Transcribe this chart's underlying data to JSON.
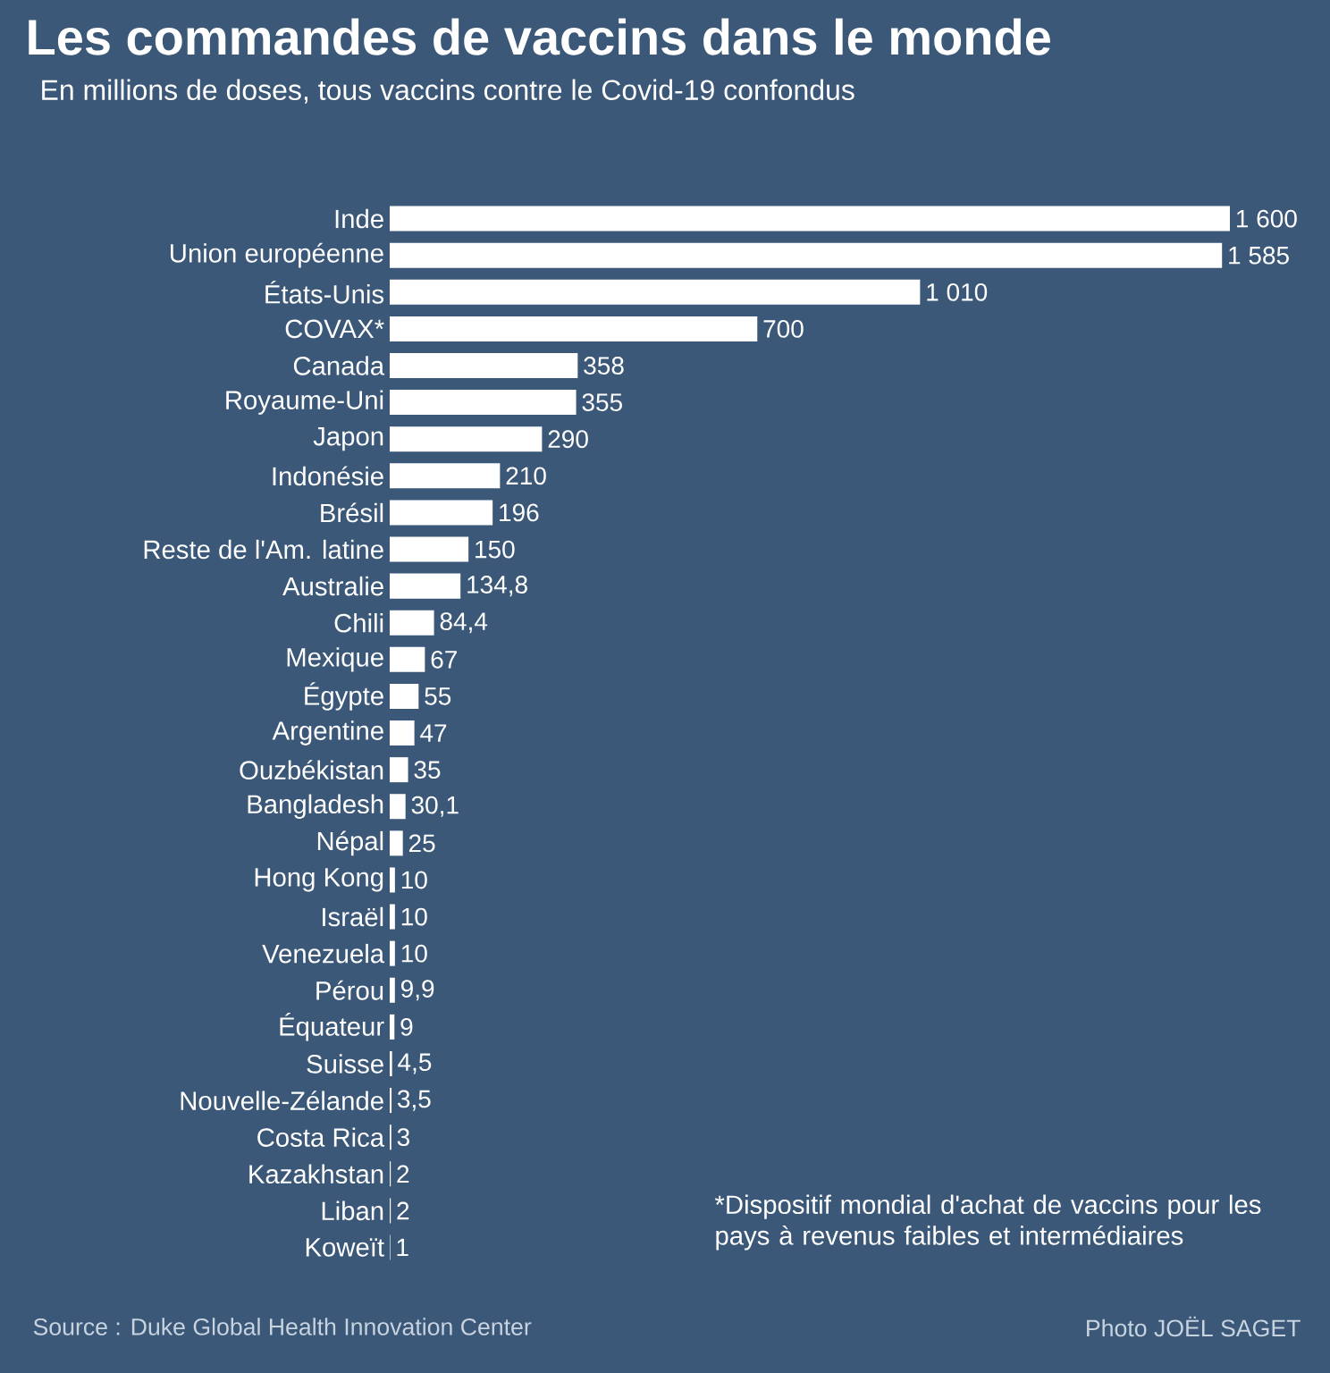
{
  "chart_data": {
    "type": "bar",
    "orientation": "horizontal",
    "title": "Les commandes de vaccins dans le monde",
    "subtitle": "En millions de doses, tous vaccins contre le Covid-19 confondus",
    "categories": [
      "Inde",
      "Union européenne",
      "États-Unis",
      "COVAX*",
      "Canada",
      "Royaume-Uni",
      "Japon",
      "Indonésie",
      "Brésil",
      "Reste de l'Am. latine",
      "Australie",
      "Chili",
      "Mexique",
      "Égypte",
      "Argentine",
      "Ouzbékistan",
      "Bangladesh",
      "Népal",
      "Hong Kong",
      "Israël",
      "Venezuela",
      "Pérou",
      "Équateur",
      "Suisse",
      "Nouvelle-Zélande",
      "Costa Rica",
      "Kazakhstan",
      "Liban",
      "Koweït"
    ],
    "values": [
      1600,
      1585,
      1010,
      700,
      358,
      355,
      290,
      210,
      196,
      150,
      134.8,
      84.4,
      67,
      55,
      47,
      35,
      30.1,
      25,
      10,
      10,
      10,
      9.9,
      9,
      4.5,
      3.5,
      3,
      2,
      2,
      1
    ],
    "value_labels": [
      "1 600",
      "1 585",
      "1 010",
      "700",
      "358",
      "355",
      "290",
      "210",
      "196",
      "150",
      "134,8",
      "84,4",
      "67",
      "55",
      "47",
      "35",
      "30,1",
      "25",
      "10",
      "10",
      "10",
      "9,9",
      "9",
      "4,5",
      "3,5",
      "3",
      "2",
      "2",
      "1"
    ],
    "color": "#ffffff",
    "xlim": [
      0,
      1600
    ],
    "annotations": [
      "*Dispositif mondial d'achat de vaccins pour les pays à revenus faibles et intermédiaires",
      "Source : Duke Global Health Innovation Center",
      "Photo JOËL SAGET"
    ]
  }
}
